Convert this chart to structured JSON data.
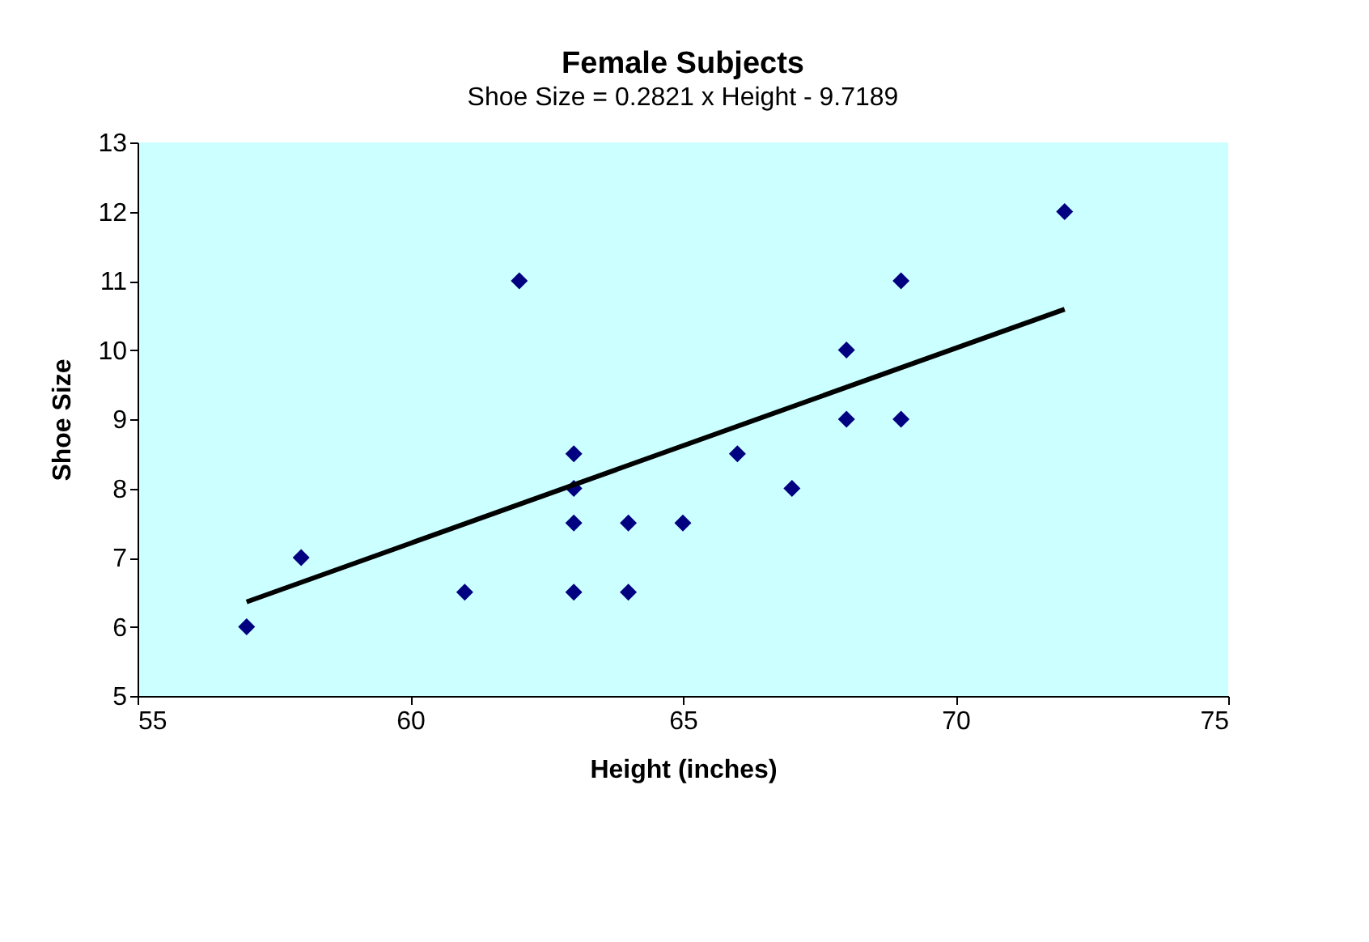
{
  "chart_data": {
    "type": "scatter",
    "title": "Female Subjects",
    "subtitle": "Shoe Size = 0.2821 x Height - 9.7189",
    "xlabel": "Height (inches)",
    "ylabel": "Shoe Size",
    "xlim": [
      55,
      75
    ],
    "xticks": [
      55,
      60,
      65,
      70,
      75
    ],
    "ylim": [
      5,
      13
    ],
    "yticks": [
      5,
      6,
      7,
      8,
      9,
      10,
      11,
      12,
      13
    ],
    "grid": false,
    "series": [
      {
        "color": "#000080",
        "marker": "diamond",
        "x": [
          57,
          58,
          61,
          62,
          63,
          63,
          63,
          63,
          64,
          64,
          65,
          66,
          67,
          68,
          68,
          69,
          69,
          72
        ],
        "values": [
          6,
          7,
          6.5,
          11,
          8.5,
          8,
          7.5,
          6.5,
          7.5,
          6.5,
          7.5,
          8.5,
          8,
          10,
          9,
          11,
          9,
          12
        ]
      },
      {
        "type": "line",
        "color": "#000000",
        "line_style": "solid",
        "marker": "none",
        "x": [
          57,
          72
        ],
        "values": [
          6.36,
          10.59
        ]
      }
    ]
  }
}
